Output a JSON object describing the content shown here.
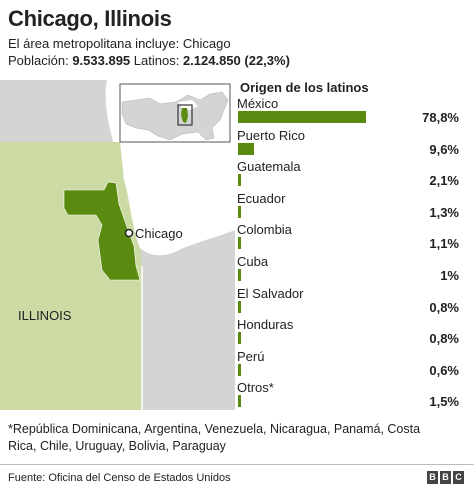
{
  "header": {
    "title": "Chicago, Illinois",
    "subtitle": "El área metropolitana incluye: Chicago",
    "population_label": "Población: ",
    "population_value": "9.533.895",
    "latinos_label": " Latinos: ",
    "latinos_value": "2.124.850 (22,3%)"
  },
  "map": {
    "state_label": "ILLINOIS",
    "city_label": "Chicago",
    "colors": {
      "state": "#ccdba4",
      "metro": "#5a8a10",
      "land": "#d4d4d4",
      "water": "#ffffff",
      "border": "#ffffff"
    }
  },
  "chart_data": {
    "type": "bar",
    "title": "Origen de los latinos",
    "categories": [
      "México",
      "Puerto Rico",
      "Guatemala",
      "Ecuador",
      "Colombia",
      "Cuba",
      "El Salvador",
      "Honduras",
      "Perú",
      "Otros*"
    ],
    "value_labels": [
      "78,8%",
      "9,6%",
      "2,1%",
      "1,3%",
      "1,1%",
      "1%",
      "0,8%",
      "0,8%",
      "0,6%",
      "1,5%"
    ],
    "values": [
      78.8,
      9.6,
      2.1,
      1.3,
      1.1,
      1.0,
      0.8,
      0.8,
      0.6,
      1.5
    ],
    "xlim": [
      0,
      100
    ],
    "bar_color": "#5a8a10"
  },
  "footnote": "*República Dominicana, Argentina, Venezuela, Nicaragua, Panamá, Costa Rica, Chile, Uruguay, Bolivia, Paraguay",
  "footer": {
    "source": "Fuente: Oficina del Censo de Estados Unidos",
    "logo_letters": [
      "B",
      "B",
      "C"
    ]
  }
}
